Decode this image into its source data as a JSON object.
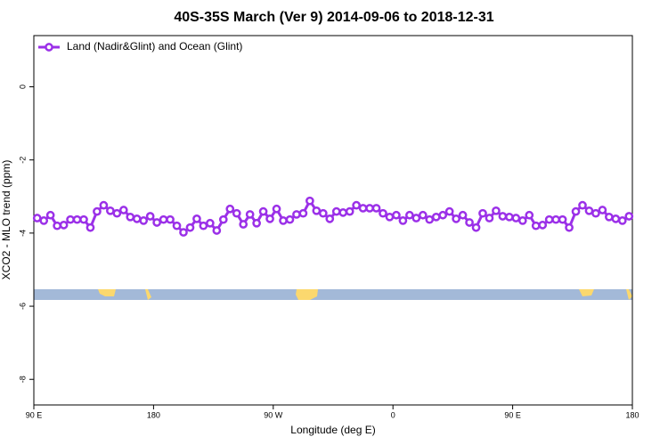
{
  "chart_data": {
    "type": "line",
    "title": "40S-35S March (Ver 9)   2014-09-06 to 2018-12-31",
    "xlabel": "Longitude (deg E)",
    "ylabel": "XCO2 - MLO trend (ppm)",
    "xlim": [
      90,
      540
    ],
    "ylim": [
      -8.7,
      1.4
    ],
    "xticks": [
      {
        "value": 90,
        "label": "90 E"
      },
      180,
      {
        "value": 270,
        "label": "90 W"
      },
      {
        "value": 360,
        "label": "0"
      },
      {
        "value": 450,
        "label": "90 E"
      },
      {
        "value": 540,
        "label": "180"
      }
    ],
    "yticks": [
      0,
      -2,
      -4,
      -6,
      -8
    ],
    "legend": "top-left",
    "x": [
      92.5,
      97.5,
      102.5,
      107.5,
      112.5,
      117.5,
      122.5,
      127.5,
      132.5,
      137.5,
      142.5,
      147.5,
      152.5,
      157.5,
      162.5,
      167.5,
      172.5,
      177.5,
      182.5,
      187.5,
      192.5,
      197.5,
      202.5,
      207.5,
      212.5,
      217.5,
      222.5,
      227.5,
      232.5,
      237.5,
      242.5,
      247.5,
      252.5,
      257.5,
      262.5,
      267.5,
      272.5,
      277.5,
      282.5,
      287.5,
      292.5,
      297.5,
      302.5,
      307.5,
      312.5,
      317.5,
      322.5,
      327.5,
      332.5,
      337.5,
      342.5,
      347.5,
      352.5,
      357.5,
      362.5,
      367.5,
      372.5,
      377.5,
      382.5,
      387.5,
      392.5,
      397.5,
      402.5,
      407.5,
      412.5,
      417.5,
      422.5,
      427.5,
      432.5,
      437.5,
      442.5,
      447.5,
      452.5,
      457.5,
      462.5,
      467.5,
      472.5,
      477.5,
      482.5,
      487.5,
      492.5,
      497.5,
      502.5,
      507.5,
      512.5,
      517.5,
      522.5,
      527.5,
      532.5,
      537.5
    ],
    "series": [
      {
        "name": "Land (Nadir&Glint) and Ocean (Glint)",
        "color": "#9b30e8",
        "values": [
          -3.59,
          -3.66,
          -3.51,
          -3.8,
          -3.78,
          -3.63,
          -3.63,
          -3.63,
          -3.85,
          -3.41,
          -3.24,
          -3.39,
          -3.46,
          -3.37,
          -3.56,
          -3.61,
          -3.66,
          -3.54,
          -3.71,
          -3.63,
          -3.63,
          -3.8,
          -3.98,
          -3.85,
          -3.61,
          -3.8,
          -3.73,
          -3.93,
          -3.63,
          -3.34,
          -3.46,
          -3.76,
          -3.49,
          -3.73,
          -3.41,
          -3.61,
          -3.34,
          -3.66,
          -3.63,
          -3.49,
          -3.46,
          -3.12,
          -3.39,
          -3.46,
          -3.61,
          -3.41,
          -3.44,
          -3.41,
          -3.24,
          -3.32,
          -3.32,
          -3.32,
          -3.46,
          -3.56,
          -3.51,
          -3.66,
          -3.51,
          -3.59,
          -3.51,
          -3.63,
          -3.56,
          -3.51,
          -3.41,
          -3.61,
          -3.51,
          -3.71,
          -3.85,
          -3.46,
          -3.59,
          -3.39,
          -3.54,
          -3.56,
          -3.59,
          -3.66,
          -3.51,
          -3.8,
          -3.78,
          -3.63,
          -3.63,
          -3.63,
          -3.85,
          -3.41,
          -3.24,
          -3.39,
          -3.46,
          -3.37,
          -3.56,
          -3.61,
          -3.66,
          -3.54
        ]
      }
    ]
  }
}
